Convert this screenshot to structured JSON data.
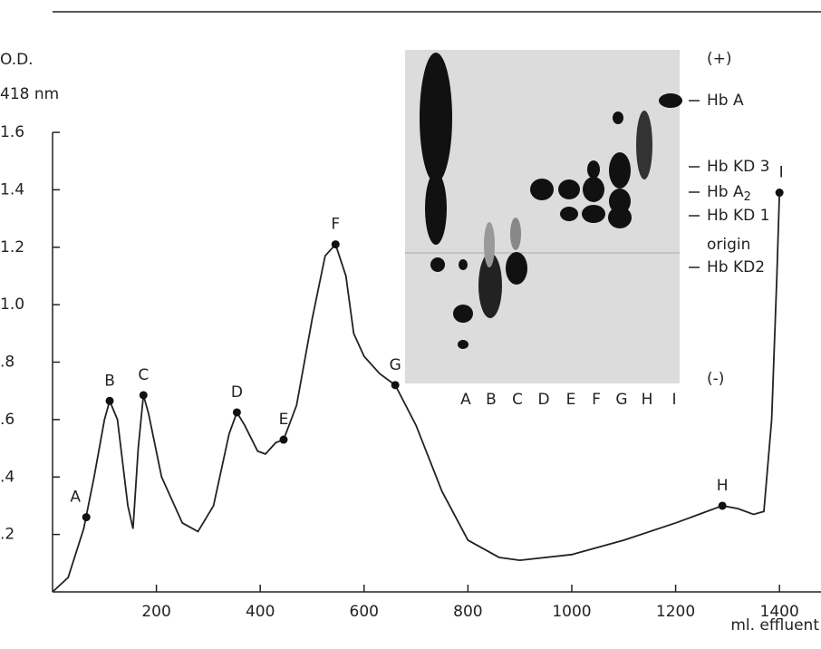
{
  "chart_data": {
    "type": "line",
    "y_label_lines": [
      "O.D.",
      "418 nm"
    ],
    "x_label": "ml. effluent",
    "xlim": [
      0,
      1480
    ],
    "ylim": [
      0,
      1.6
    ],
    "xticks": [
      200,
      400,
      600,
      800,
      1000,
      1200,
      1400
    ],
    "yticks": [
      {
        "value": 0.2,
        "label": ".2"
      },
      {
        "value": 0.4,
        "label": ".4"
      },
      {
        "value": 0.6,
        "label": ".6"
      },
      {
        "value": 0.8,
        "label": ".8"
      },
      {
        "value": 1.0,
        "label": "1.0"
      },
      1.2,
      1.4,
      1.6
    ],
    "series": [
      {
        "color": "#222222",
        "x": [
          0,
          30,
          60,
          80,
          100,
          110,
          125,
          145,
          155,
          165,
          175,
          185,
          210,
          250,
          280,
          310,
          340,
          355,
          370,
          395,
          410,
          430,
          445,
          470,
          500,
          525,
          545,
          565,
          580,
          600,
          630,
          660,
          700,
          750,
          800,
          860,
          900,
          1000,
          1100,
          1200,
          1290,
          1320,
          1350,
          1370,
          1385,
          1395,
          1400
        ],
        "values": [
          0,
          0.05,
          0.22,
          0.4,
          0.6,
          0.665,
          0.6,
          0.3,
          0.22,
          0.5,
          0.685,
          0.62,
          0.4,
          0.24,
          0.21,
          0.3,
          0.55,
          0.625,
          0.58,
          0.49,
          0.48,
          0.52,
          0.53,
          0.65,
          0.95,
          1.17,
          1.21,
          1.1,
          0.9,
          0.82,
          0.76,
          0.72,
          0.58,
          0.35,
          0.18,
          0.12,
          0.11,
          0.13,
          0.18,
          0.24,
          0.3,
          0.29,
          0.27,
          0.28,
          0.6,
          1.1,
          1.39
        ]
      }
    ],
    "points": [
      {
        "label": "A",
        "x": 65,
        "y": 0.26
      },
      {
        "label": "B",
        "x": 110,
        "y": 0.665
      },
      {
        "label": "C",
        "x": 175,
        "y": 0.685
      },
      {
        "label": "D",
        "x": 355,
        "y": 0.625
      },
      {
        "label": "E",
        "x": 445,
        "y": 0.53
      },
      {
        "label": "F",
        "x": 545,
        "y": 1.21
      },
      {
        "label": "G",
        "x": 660,
        "y": 0.72
      },
      {
        "label": "H",
        "x": 1290,
        "y": 0.3
      },
      {
        "label": "I",
        "x": 1400,
        "y": 1.39
      }
    ],
    "inset": {
      "lanes": [
        "A",
        "B",
        "C",
        "D",
        "E",
        "F",
        "G",
        "H",
        "I"
      ],
      "band_labels": [
        {
          "text": "(+)"
        },
        {
          "text": "Hb A"
        },
        {
          "text": "Hb KD 3"
        },
        {
          "text": "Hb A",
          "sub": "2"
        },
        {
          "text": "Hb KD 1"
        },
        {
          "text": "origin"
        },
        {
          "text": "Hb KD2"
        },
        {
          "text": "(-)"
        }
      ]
    }
  }
}
